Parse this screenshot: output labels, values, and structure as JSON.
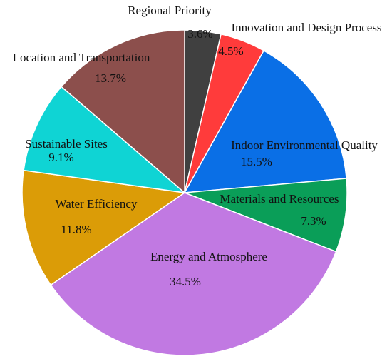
{
  "chart_data": {
    "type": "pie",
    "title": "",
    "legend": "none",
    "slices": [
      {
        "label": "Regional Priority",
        "value": 3.6,
        "value_label": "3.6%",
        "color": "#404040"
      },
      {
        "label": "Innovation and Design Process",
        "value": 4.5,
        "value_label": "4.5%",
        "color": "#ff3b3b"
      },
      {
        "label": "Indoor Environmental Quality",
        "value": 15.5,
        "value_label": "15.5%",
        "color": "#0a6fe6"
      },
      {
        "label": "Materials and Resources",
        "value": 7.3,
        "value_label": "7.3%",
        "color": "#0a9e58"
      },
      {
        "label": "Energy and Atmosphere",
        "value": 34.5,
        "value_label": "34.5%",
        "color": "#c179e2"
      },
      {
        "label": "Water Efficiency",
        "value": 11.8,
        "value_label": "11.8%",
        "color": "#db9c07"
      },
      {
        "label": "Sustainable Sites",
        "value": 9.1,
        "value_label": "9.1%",
        "color": "#0fd4d4"
      },
      {
        "label": "Location and Transportation",
        "value": 13.7,
        "value_label": "13.7%",
        "color": "#8c4f4c"
      }
    ]
  }
}
